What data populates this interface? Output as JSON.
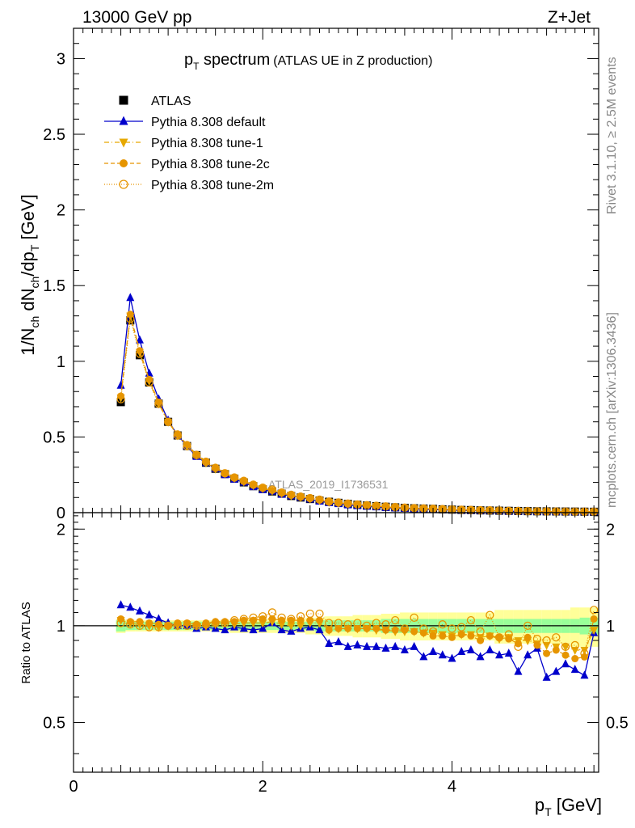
{
  "header": {
    "energy": "13000 GeV pp",
    "process": "Z+Jet"
  },
  "side_labels": {
    "rivet": "Rivet 3.1.10, ≥ 2.5M events",
    "mcplots": "mcplots.cern.ch [arXiv:1306.3436]"
  },
  "watermark": "ATLAS_2019_I1736531",
  "chart_data": [
    {
      "type": "scatter",
      "title_main": "p",
      "title_sub": "T",
      "title_rest": " spectrum",
      "title_paren": "(ATLAS UE in Z production)",
      "ylabel": "1/N_ch dN_ch/dp_T [GeV]",
      "xlim": [
        0,
        5.55
      ],
      "ylim": [
        0,
        3.2
      ],
      "yticks": [
        "0",
        "0.5",
        "1",
        "1.5",
        "2",
        "2.5",
        "3"
      ],
      "legend_position": "top-left",
      "x": [
        0.5,
        0.6,
        0.7,
        0.8,
        0.9,
        1.0,
        1.1,
        1.2,
        1.3,
        1.4,
        1.5,
        1.6,
        1.7,
        1.8,
        1.9,
        2.0,
        2.1,
        2.2,
        2.3,
        2.4,
        2.5,
        2.6,
        2.7,
        2.8,
        2.9,
        3.0,
        3.1,
        3.2,
        3.3,
        3.4,
        3.5,
        3.6,
        3.7,
        3.8,
        3.9,
        4.0,
        4.1,
        4.2,
        4.3,
        4.4,
        4.5,
        4.6,
        4.7,
        4.8,
        4.9,
        5.0,
        5.1,
        5.2,
        5.3,
        5.4,
        5.5
      ],
      "series": [
        {
          "name": "ATLAS",
          "color": "#000000",
          "marker": "square",
          "values": [
            0.73,
            1.27,
            1.04,
            0.86,
            0.72,
            0.6,
            0.51,
            0.44,
            0.38,
            0.33,
            0.29,
            0.255,
            0.225,
            0.2,
            0.175,
            0.155,
            0.14,
            0.125,
            0.11,
            0.1,
            0.09,
            0.08,
            0.072,
            0.065,
            0.058,
            0.052,
            0.047,
            0.043,
            0.039,
            0.035,
            0.032,
            0.029,
            0.027,
            0.025,
            0.022,
            0.02,
            0.018,
            0.017,
            0.015,
            0.014,
            0.013,
            0.012,
            0.011,
            0.01,
            0.009,
            0.0085,
            0.008,
            0.0075,
            0.007,
            0.0065,
            0.006
          ]
        },
        {
          "name": "Pythia 8.308 default",
          "color": "#0000cc",
          "marker": "triangle-filled",
          "values": [
            0.84,
            1.42,
            1.14,
            0.92,
            0.75,
            0.61,
            0.51,
            0.44,
            0.37,
            0.33,
            0.29,
            0.25,
            0.22,
            0.2,
            0.17,
            0.15,
            0.14,
            0.12,
            0.11,
            0.1,
            0.088,
            0.075,
            0.065,
            0.058,
            0.05,
            0.045,
            0.041,
            0.037,
            0.033,
            0.03,
            0.027,
            0.025,
            0.022,
            0.021,
            0.018,
            0.017,
            0.015,
            0.014,
            0.012,
            0.012,
            0.011,
            0.009,
            0.009,
            0.008,
            0.007,
            0.007,
            0.006,
            0.006,
            0.005,
            0.005,
            0.005
          ]
        },
        {
          "name": "Pythia 8.308 tune-1",
          "color": "#e6a800",
          "marker": "triangle-down-filled",
          "values": [
            0.76,
            1.3,
            1.06,
            0.87,
            0.72,
            0.6,
            0.51,
            0.44,
            0.38,
            0.33,
            0.29,
            0.26,
            0.23,
            0.205,
            0.18,
            0.16,
            0.145,
            0.128,
            0.113,
            0.102,
            0.092,
            0.082,
            0.07,
            0.064,
            0.057,
            0.051,
            0.046,
            0.042,
            0.038,
            0.034,
            0.031,
            0.028,
            0.026,
            0.024,
            0.021,
            0.019,
            0.017,
            0.016,
            0.014,
            0.013,
            0.012,
            0.011,
            0.01,
            0.009,
            0.008,
            0.008,
            0.007,
            0.007,
            0.006,
            0.006,
            0.006
          ]
        },
        {
          "name": "Pythia 8.308 tune-2c",
          "color": "#e69500",
          "marker": "circle-filled",
          "values": [
            0.77,
            1.31,
            1.07,
            0.88,
            0.73,
            0.6,
            0.52,
            0.45,
            0.385,
            0.34,
            0.3,
            0.262,
            0.232,
            0.208,
            0.182,
            0.162,
            0.147,
            0.13,
            0.115,
            0.104,
            0.093,
            0.083,
            0.071,
            0.065,
            0.058,
            0.052,
            0.047,
            0.043,
            0.039,
            0.035,
            0.032,
            0.029,
            0.027,
            0.025,
            0.022,
            0.02,
            0.018,
            0.017,
            0.015,
            0.014,
            0.013,
            0.012,
            0.011,
            0.0095,
            0.0085,
            0.008,
            0.0075,
            0.007,
            0.0065,
            0.006,
            0.0063
          ]
        },
        {
          "name": "Pythia 8.308 tune-2m",
          "color": "#e69500",
          "marker": "circle-open",
          "values": [
            0.75,
            1.28,
            1.05,
            0.86,
            0.72,
            0.6,
            0.51,
            0.44,
            0.38,
            0.335,
            0.295,
            0.26,
            0.232,
            0.21,
            0.185,
            0.165,
            0.152,
            0.133,
            0.118,
            0.106,
            0.096,
            0.086,
            0.073,
            0.067,
            0.06,
            0.054,
            0.049,
            0.045,
            0.041,
            0.037,
            0.033,
            0.03,
            0.028,
            0.026,
            0.023,
            0.021,
            0.019,
            0.018,
            0.016,
            0.015,
            0.014,
            0.012,
            0.011,
            0.0098,
            0.0088,
            0.0083,
            0.0078,
            0.0073,
            0.0068,
            0.0063,
            0.0067
          ]
        }
      ]
    },
    {
      "type": "scatter",
      "ylabel": "Ratio to ATLAS",
      "xlabel": "p_T [GeV]",
      "xlim": [
        0,
        5.55
      ],
      "ylim": [
        0.35,
        2.25
      ],
      "log_y": true,
      "yticks": [
        "0.5",
        "1",
        "2"
      ],
      "xticks": [
        "0",
        "2",
        "4"
      ],
      "bands": {
        "x": [
          0.5,
          0.6,
          0.7,
          0.8,
          0.9,
          1.0,
          1.1,
          1.2,
          1.3,
          1.4,
          1.5,
          1.6,
          1.7,
          1.8,
          1.9,
          2.0,
          2.1,
          2.2,
          2.3,
          2.4,
          2.5,
          2.6,
          2.7,
          2.8,
          2.9,
          3.0,
          3.1,
          3.2,
          3.3,
          3.4,
          3.5,
          3.6,
          3.7,
          3.8,
          3.9,
          4.0,
          4.1,
          4.2,
          4.3,
          4.4,
          4.5,
          4.6,
          4.7,
          4.8,
          4.9,
          5.0,
          5.1,
          5.2,
          5.3,
          5.4,
          5.5
        ],
        "stat_color": "#99ff99",
        "total_color": "#ffff99",
        "stat_half": [
          0.04,
          0.03,
          0.03,
          0.03,
          0.03,
          0.03,
          0.03,
          0.03,
          0.03,
          0.03,
          0.03,
          0.03,
          0.03,
          0.03,
          0.03,
          0.03,
          0.03,
          0.03,
          0.03,
          0.03,
          0.03,
          0.04,
          0.04,
          0.04,
          0.04,
          0.04,
          0.04,
          0.04,
          0.05,
          0.05,
          0.05,
          0.05,
          0.05,
          0.05,
          0.05,
          0.05,
          0.05,
          0.05,
          0.05,
          0.05,
          0.05,
          0.05,
          0.05,
          0.05,
          0.05,
          0.05,
          0.05,
          0.05,
          0.05,
          0.06,
          0.06
        ],
        "total_half": [
          0.05,
          0.04,
          0.04,
          0.04,
          0.04,
          0.04,
          0.04,
          0.04,
          0.04,
          0.04,
          0.04,
          0.04,
          0.05,
          0.05,
          0.05,
          0.05,
          0.05,
          0.05,
          0.05,
          0.05,
          0.06,
          0.06,
          0.07,
          0.07,
          0.07,
          0.08,
          0.08,
          0.08,
          0.09,
          0.09,
          0.1,
          0.1,
          0.1,
          0.1,
          0.1,
          0.1,
          0.1,
          0.1,
          0.1,
          0.1,
          0.12,
          0.12,
          0.12,
          0.12,
          0.12,
          0.12,
          0.12,
          0.12,
          0.14,
          0.14,
          0.14
        ]
      },
      "series": [
        {
          "name": "Pythia 8.308 default",
          "color": "#0000cc",
          "marker": "triangle-filled",
          "values": [
            1.16,
            1.14,
            1.11,
            1.08,
            1.05,
            1.02,
            1.0,
            1.0,
            0.98,
            0.99,
            0.98,
            0.97,
            0.99,
            0.98,
            0.97,
            0.98,
            1.02,
            0.97,
            0.96,
            0.98,
            0.99,
            0.97,
            0.88,
            0.89,
            0.86,
            0.87,
            0.86,
            0.86,
            0.85,
            0.86,
            0.84,
            0.86,
            0.8,
            0.83,
            0.81,
            0.79,
            0.83,
            0.84,
            0.8,
            0.84,
            0.81,
            0.82,
            0.72,
            0.81,
            0.85,
            0.69,
            0.72,
            0.76,
            0.73,
            0.7,
            0.95
          ]
        },
        {
          "name": "Pythia 8.308 tune-1",
          "color": "#e6a800",
          "marker": "triangle-down-filled",
          "values": [
            1.04,
            1.02,
            1.01,
            1.0,
            0.99,
            1.0,
            1.0,
            1.01,
            1.0,
            1.0,
            1.01,
            1.02,
            1.01,
            1.02,
            1.02,
            1.02,
            1.03,
            1.01,
            1.0,
            1.0,
            1.02,
            1.02,
            0.97,
            0.98,
            0.98,
            0.98,
            0.98,
            0.97,
            0.97,
            0.96,
            0.96,
            0.96,
            0.95,
            0.95,
            0.94,
            0.93,
            0.94,
            0.94,
            0.92,
            0.93,
            0.91,
            0.92,
            0.9,
            0.9,
            0.88,
            0.87,
            0.86,
            0.86,
            0.84,
            0.84,
            0.97
          ]
        },
        {
          "name": "Pythia 8.308 tune-2c",
          "color": "#e69500",
          "marker": "circle-filled",
          "values": [
            1.05,
            1.03,
            1.03,
            1.02,
            1.01,
            1.0,
            1.02,
            1.02,
            1.01,
            1.02,
            1.03,
            1.03,
            1.03,
            1.04,
            1.04,
            1.05,
            1.05,
            1.04,
            1.04,
            1.04,
            1.04,
            1.04,
            0.97,
            0.98,
            0.98,
            0.98,
            0.98,
            0.98,
            0.97,
            0.97,
            0.97,
            0.96,
            0.95,
            0.93,
            0.93,
            0.92,
            0.94,
            0.93,
            0.9,
            0.93,
            0.92,
            0.91,
            0.88,
            0.92,
            0.87,
            0.82,
            0.84,
            0.81,
            0.79,
            0.8,
            1.05
          ]
        },
        {
          "name": "Pythia 8.308 tune-2m",
          "color": "#e69500",
          "marker": "circle-open",
          "values": [
            1.02,
            1.01,
            1.0,
            0.99,
            0.99,
            1.0,
            1.0,
            1.0,
            1.0,
            1.01,
            1.02,
            1.02,
            1.04,
            1.05,
            1.06,
            1.07,
            1.1,
            1.06,
            1.05,
            1.07,
            1.09,
            1.09,
            1.02,
            1.02,
            1.01,
            1.02,
            1.0,
            1.02,
            1.01,
            1.04,
            0.98,
            1.06,
            0.98,
            0.96,
            1.01,
            0.98,
            0.99,
            1.04,
            0.96,
            1.08,
            0.92,
            0.94,
            0.86,
            1.0,
            0.91,
            0.9,
            0.92,
            0.86,
            0.87,
            0.82,
            1.12
          ]
        }
      ]
    }
  ]
}
